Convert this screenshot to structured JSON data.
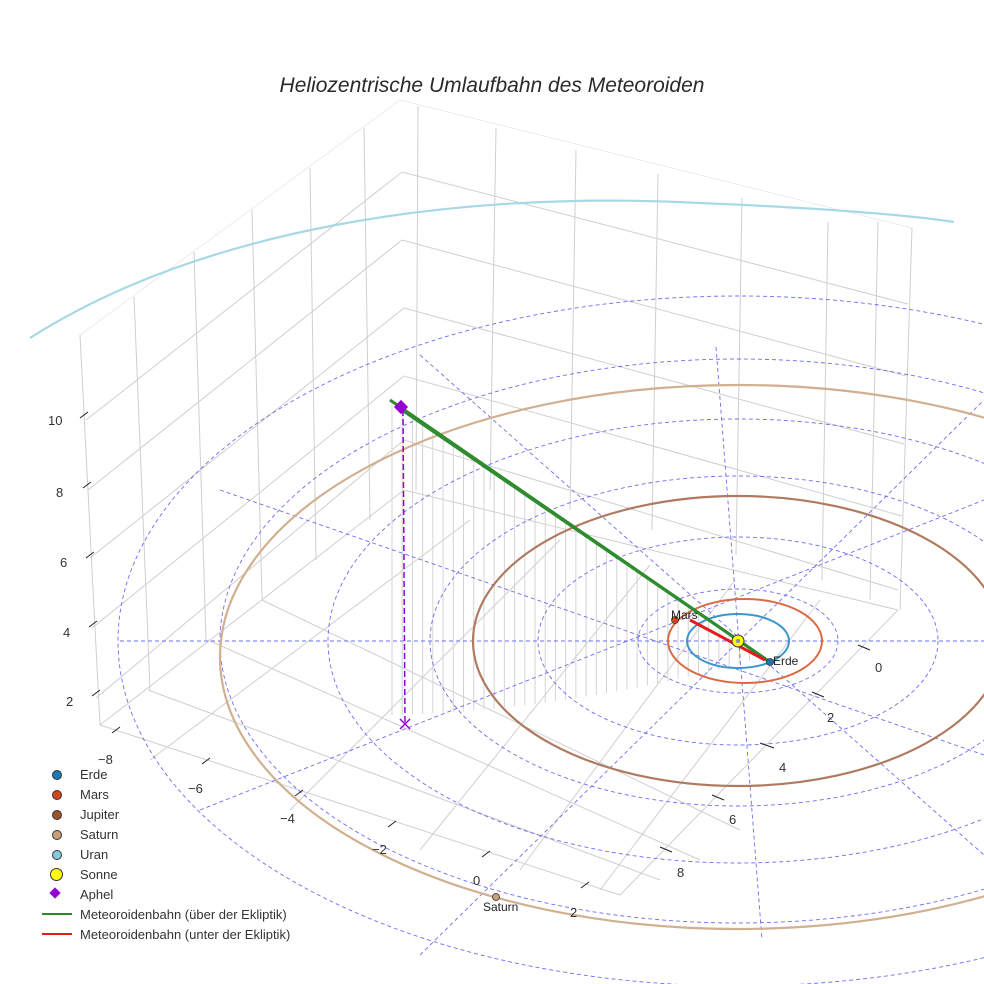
{
  "title": "Heliozentrische Umlaufbahn des Meteoroiden",
  "colors": {
    "erde": "#1f77b4",
    "mars": "#d2461e",
    "jupiter": "#a0522d",
    "saturn": "#c8a078",
    "uran": "#88c8dc",
    "sonne": "#ffff00",
    "aphel": "#9400d3",
    "above": "#228b22",
    "below": "#e41a1c",
    "guide": "#5555ee",
    "grid": "#cccccc"
  },
  "legend": [
    {
      "label": "Erde",
      "symbol": "dot",
      "color": "#1f77b4"
    },
    {
      "label": "Mars",
      "symbol": "dot",
      "color": "#d2461e"
    },
    {
      "label": "Jupiter",
      "symbol": "dot",
      "color": "#a0522d"
    },
    {
      "label": "Saturn",
      "symbol": "dot",
      "color": "#c8a078"
    },
    {
      "label": "Uran",
      "symbol": "dot",
      "color": "#88c8dc"
    },
    {
      "label": "Sonne",
      "symbol": "bigdot",
      "color": "#ffff00"
    },
    {
      "label": "Aphel",
      "symbol": "diamond",
      "color": "#9400d3"
    },
    {
      "label": "Meteoroidenbahn (über der Ekliptik)",
      "symbol": "line",
      "color": "#228b22"
    },
    {
      "label": "Meteoroidenbahn (unter der Ekliptik)",
      "symbol": "line",
      "color": "#e41a1c"
    }
  ],
  "axes": {
    "x_ticks": [
      "−8",
      "−6",
      "−4",
      "−2",
      "0",
      "2"
    ],
    "y_ticks": [
      "0",
      "2",
      "4",
      "6",
      "8"
    ],
    "z_ticks": [
      "2",
      "4",
      "6",
      "8",
      "10"
    ]
  },
  "planet_labels": {
    "mars": "Mars",
    "erde": "Erde",
    "saturn": "Saturn"
  },
  "chart_data": {
    "type": "scatter3d",
    "title": "Heliozentrische Umlaufbahn des Meteoroiden",
    "xlabel": "",
    "ylabel": "",
    "zlabel": "",
    "x_ticks": [
      -8,
      -6,
      -4,
      -2,
      0,
      2
    ],
    "y_ticks": [
      0,
      2,
      4,
      6,
      8
    ],
    "z_ticks": [
      2,
      4,
      6,
      8,
      10
    ],
    "orbits_au": {
      "Erde": 1.0,
      "Mars": 1.52,
      "Jupiter": 5.2,
      "Saturn": 9.54,
      "Uran": 19.2
    },
    "bodies": [
      {
        "name": "Sonne",
        "x": 0,
        "y": 0,
        "z": 0
      },
      {
        "name": "Erde",
        "x": 0.6,
        "y": 0.8,
        "z": 0
      },
      {
        "name": "Mars",
        "x": -1.4,
        "y": -0.6,
        "z": 0
      },
      {
        "name": "Saturn",
        "x": -0.5,
        "y": 9.5,
        "z": 0
      }
    ],
    "aphel": {
      "x": -6.5,
      "y": -3.5,
      "z": 10.6
    },
    "series": [
      {
        "name": "Meteoroidenbahn (über der Ekliptik)",
        "color": "#228b22",
        "from": [
          0.6,
          0.8,
          0
        ],
        "to": [
          -6.5,
          -3.5,
          10.6
        ]
      },
      {
        "name": "Meteoroidenbahn (unter der Ekliptik)",
        "color": "#e41a1c",
        "from": [
          0.6,
          0.8,
          0
        ],
        "to": [
          -1.2,
          -0.6,
          -0.2
        ]
      }
    ],
    "legend_position": "bottom-left",
    "grid": true
  }
}
